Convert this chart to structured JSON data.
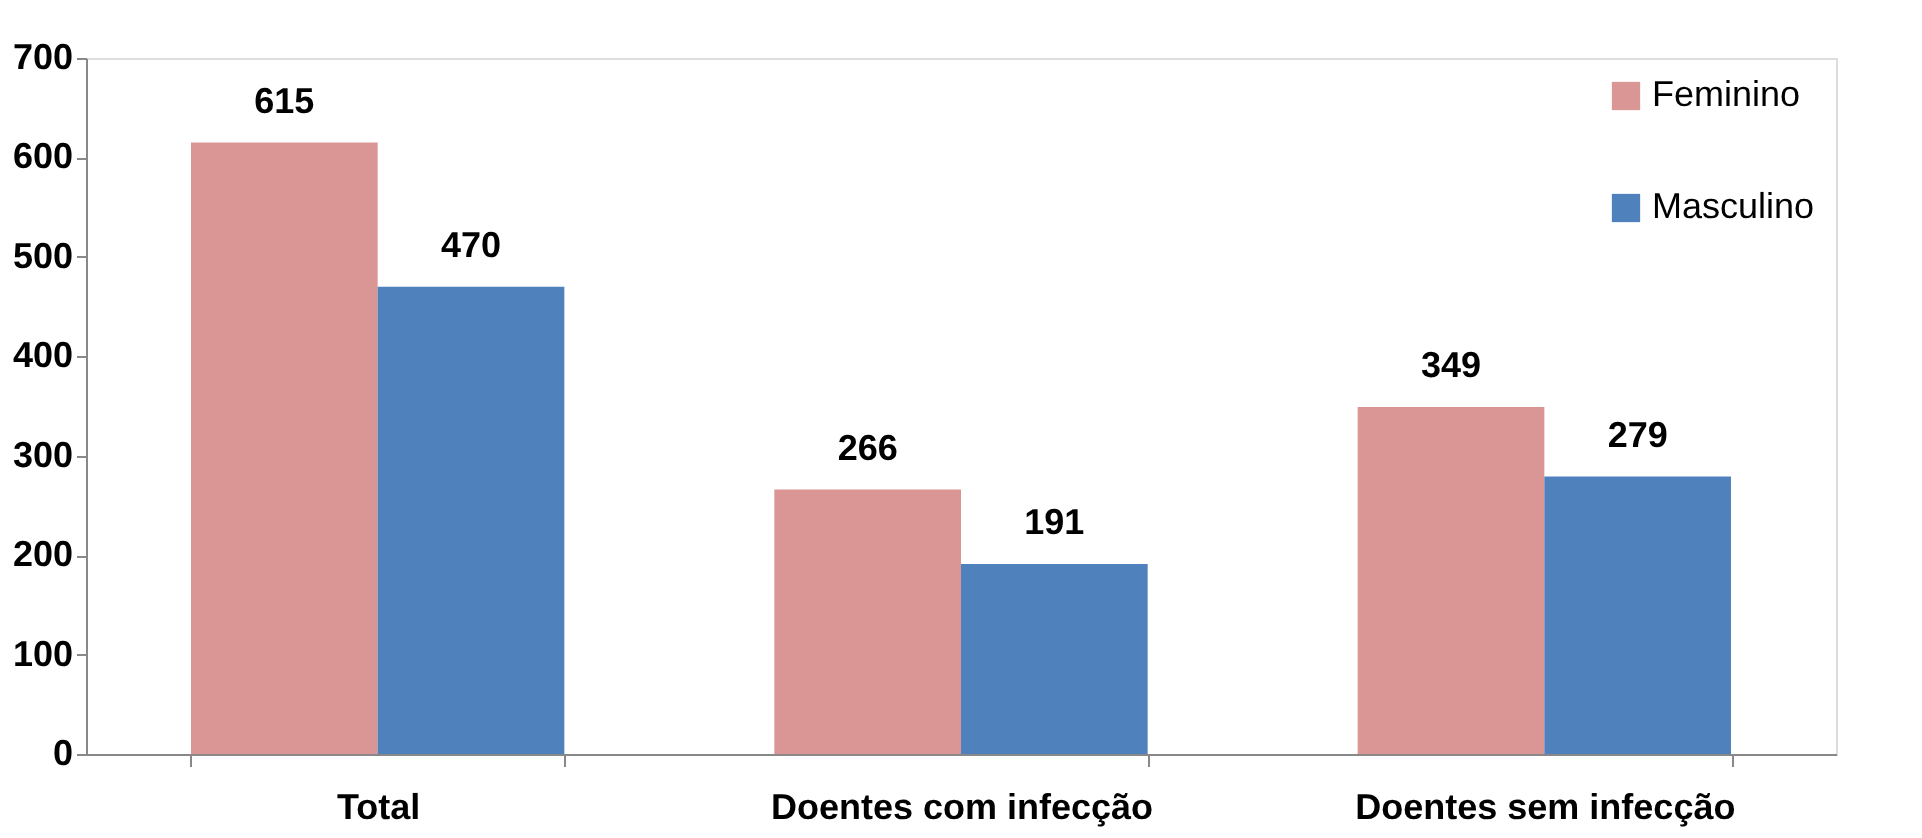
{
  "chart_data": {
    "type": "bar",
    "categories": [
      "Total",
      "Doentes com infecção",
      "Doentes sem infecção"
    ],
    "series": [
      {
        "name": "Feminino",
        "color": "#d99694",
        "values": [
          615,
          266,
          349
        ]
      },
      {
        "name": "Masculino",
        "color": "#4f81bd",
        "values": [
          470,
          191,
          279
        ]
      }
    ],
    "ylim": [
      0,
      700
    ],
    "yticks": [
      0,
      100,
      200,
      300,
      400,
      500,
      600,
      700
    ],
    "grid": false,
    "legend": "top right",
    "data_labels": true
  }
}
